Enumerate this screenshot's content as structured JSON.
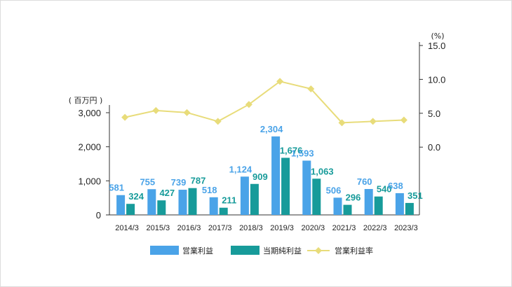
{
  "chart_data": {
    "type": "bar",
    "categories": [
      "2014/3",
      "2015/3",
      "2016/3",
      "2017/3",
      "2018/3",
      "2019/3",
      "2020/3",
      "2021/3",
      "2022/3",
      "2023/3"
    ],
    "series": [
      {
        "name": "営業利益",
        "type": "bar",
        "axis": "left",
        "color": "#4aa3e8",
        "values": [
          581,
          755,
          739,
          518,
          1124,
          2304,
          1593,
          506,
          760,
          638
        ],
        "labels": [
          "581",
          "755",
          "739",
          "518",
          "1,124",
          "2,304",
          "1,593",
          "506",
          "760",
          "638"
        ]
      },
      {
        "name": "当期純利益",
        "type": "bar",
        "axis": "left",
        "color": "#179b9a",
        "values": [
          324,
          427,
          787,
          211,
          909,
          1676,
          1063,
          296,
          540,
          351
        ],
        "labels": [
          "324",
          "427",
          "787",
          "211",
          "909",
          "1,676",
          "1,063",
          "296",
          "540",
          "351"
        ]
      },
      {
        "name": "営業利益率",
        "type": "line",
        "axis": "right",
        "color": "#e8dc7a",
        "values": [
          4.4,
          5.4,
          5.1,
          3.8,
          6.3,
          9.7,
          8.6,
          3.6,
          3.8,
          4.0
        ]
      }
    ],
    "y_left": {
      "unit": "( 百万円 )",
      "ticks": [
        "0",
        "1,000",
        "2,000",
        "3,000"
      ],
      "tick_values": [
        0,
        1000,
        2000,
        3000
      ],
      "range": [
        0,
        3000
      ]
    },
    "y_right": {
      "unit": "(%)",
      "ticks": [
        "0.0",
        "5.0",
        "10.0",
        "15.0"
      ],
      "tick_values": [
        0,
        5,
        10,
        15
      ],
      "range": [
        -10,
        15
      ]
    },
    "legend_position": "bottom",
    "grid": false
  }
}
